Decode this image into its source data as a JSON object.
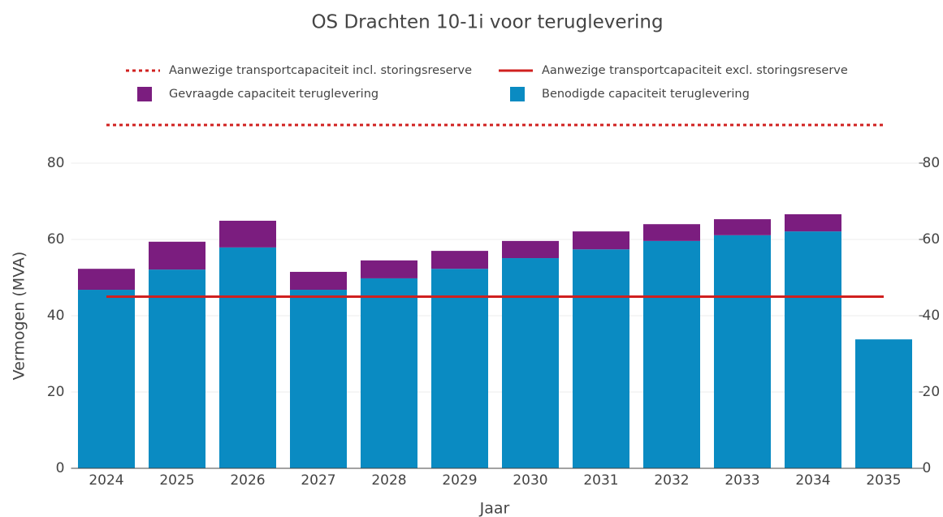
{
  "chart_data": {
    "type": "stacked_bar",
    "title": "OS Drachten 10-1i voor teruglevering",
    "x_label": "Jaar",
    "y_label": "Vermogen (MVA)",
    "categories": [
      "2024",
      "2025",
      "2026",
      "2027",
      "2028",
      "2029",
      "2030",
      "2031",
      "2032",
      "2033",
      "2034",
      "2035"
    ],
    "series": [
      {
        "name": "Benodigde capaciteit teruglevering",
        "color": "#0a8bc2",
        "values": [
          46.8,
          52.1,
          57.9,
          46.8,
          49.8,
          52.3,
          55.1,
          57.4,
          59.6,
          61.1,
          62.1,
          33.8
        ]
      },
      {
        "name": "Gevraagde capaciteit teruglevering",
        "color": "#7b1d7f",
        "values": [
          5.5,
          7.3,
          7.0,
          4.7,
          4.7,
          4.7,
          4.5,
          4.7,
          4.4,
          4.2,
          4.5,
          0
        ]
      }
    ],
    "reference_lines": [
      {
        "name": "Aanwezige transportcapaciteit incl. storingsreserve",
        "color": "#d0201f",
        "value": 90,
        "dashed": true
      },
      {
        "name": "Aanwezige transportcapaciteit excl. storingsreserve",
        "color": "#d0201f",
        "value": 45,
        "dashed": false
      }
    ],
    "ylim": [
      0,
      80
    ],
    "yticks": [
      0,
      20,
      40,
      60,
      80
    ],
    "y2lim": [
      0,
      80
    ],
    "y2ticks": [
      0,
      20,
      40,
      60,
      80
    ],
    "grid": true
  }
}
